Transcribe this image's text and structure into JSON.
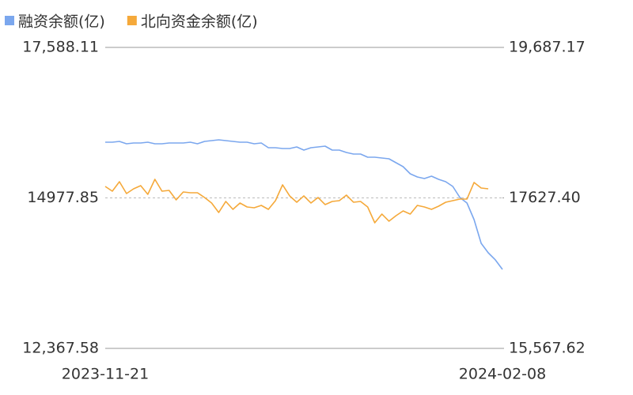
{
  "chart_data": {
    "type": "line",
    "categories": [
      "2023-11-21",
      null,
      null,
      null,
      null,
      null,
      null,
      null,
      null,
      null,
      null,
      null,
      null,
      null,
      null,
      null,
      null,
      null,
      null,
      null,
      null,
      null,
      null,
      null,
      null,
      null,
      null,
      null,
      null,
      null,
      null,
      null,
      null,
      null,
      null,
      null,
      null,
      null,
      null,
      null,
      null,
      null,
      null,
      null,
      null,
      null,
      null,
      null,
      null,
      null,
      null,
      null,
      null,
      null,
      null,
      null,
      "2024-02-08"
    ],
    "series": [
      {
        "name": "融资余额(亿)",
        "color": "#7ba7ee",
        "values": [
          15943.9,
          15943.9,
          15957.6,
          15916.5,
          15930.2,
          15930.2,
          15943.9,
          15916.5,
          15916.5,
          15930.2,
          15930.2,
          15930.2,
          15943.9,
          15916.5,
          15957.6,
          15971.3,
          15985.0,
          15971.3,
          15957.6,
          15943.9,
          15943.9,
          15916.5,
          15930.2,
          15847.9,
          15847.9,
          15834.2,
          15834.2,
          15861.6,
          15806.8,
          15847.9,
          15861.6,
          15875.3,
          15806.8,
          15806.8,
          15765.7,
          15738.3,
          15738.3,
          15683.5,
          15683.5,
          15669.8,
          15656.1,
          15587.6,
          15519.1,
          15395.8,
          15341.2,
          15313.6,
          15354.7,
          15299.9,
          15258.8,
          15176.5,
          14984.7,
          14888.8,
          14601.1,
          14190.0,
          14025.6,
          13902.3,
          13737.8
        ]
      },
      {
        "name": "北向资金余额(亿)",
        "color": "#f5a93a",
        "axis": "y2",
        "values": [
          17784.3,
          17719.4,
          17849.2,
          17687.0,
          17751.9,
          17795.1,
          17676.2,
          17881.6,
          17719.4,
          17730.2,
          17600.5,
          17708.6,
          17697.8,
          17697.8,
          17632.9,
          17557.2,
          17427.5,
          17578.9,
          17470.7,
          17557.2,
          17503.2,
          17492.4,
          17524.8,
          17470.7,
          17589.7,
          17805.9,
          17654.5,
          17568.0,
          17654.5,
          17557.2,
          17632.9,
          17535.6,
          17578.9,
          17589.7,
          17665.4,
          17568.0,
          17578.9,
          17503.2,
          17286.9,
          17405.9,
          17308.6,
          17384.3,
          17449.1,
          17405.9,
          17524.8,
          17503.2,
          17470.7,
          17514.0,
          17568.0,
          17589.7,
          17611.3,
          17611.3,
          17838.3,
          17762.7,
          17751.9,
          null,
          null
        ]
      }
    ],
    "ylim": [
      12367.58,
      17588.11
    ],
    "yticks": [
      {
        "value": 12367.58,
        "label": "12,367.58"
      },
      {
        "value": 14977.85,
        "label": "14977.85"
      },
      {
        "value": 17588.11,
        "label": "17,588.11"
      }
    ],
    "y2lim": [
      15567.62,
      19687.17
    ],
    "y2ticks": [
      {
        "value": 15567.62,
        "label": "15,567.62"
      },
      {
        "value": 17627.4,
        "label": "17627.40"
      },
      {
        "value": 19687.17,
        "label": "19,687.17"
      }
    ],
    "grid": true,
    "legend": "top-left"
  }
}
